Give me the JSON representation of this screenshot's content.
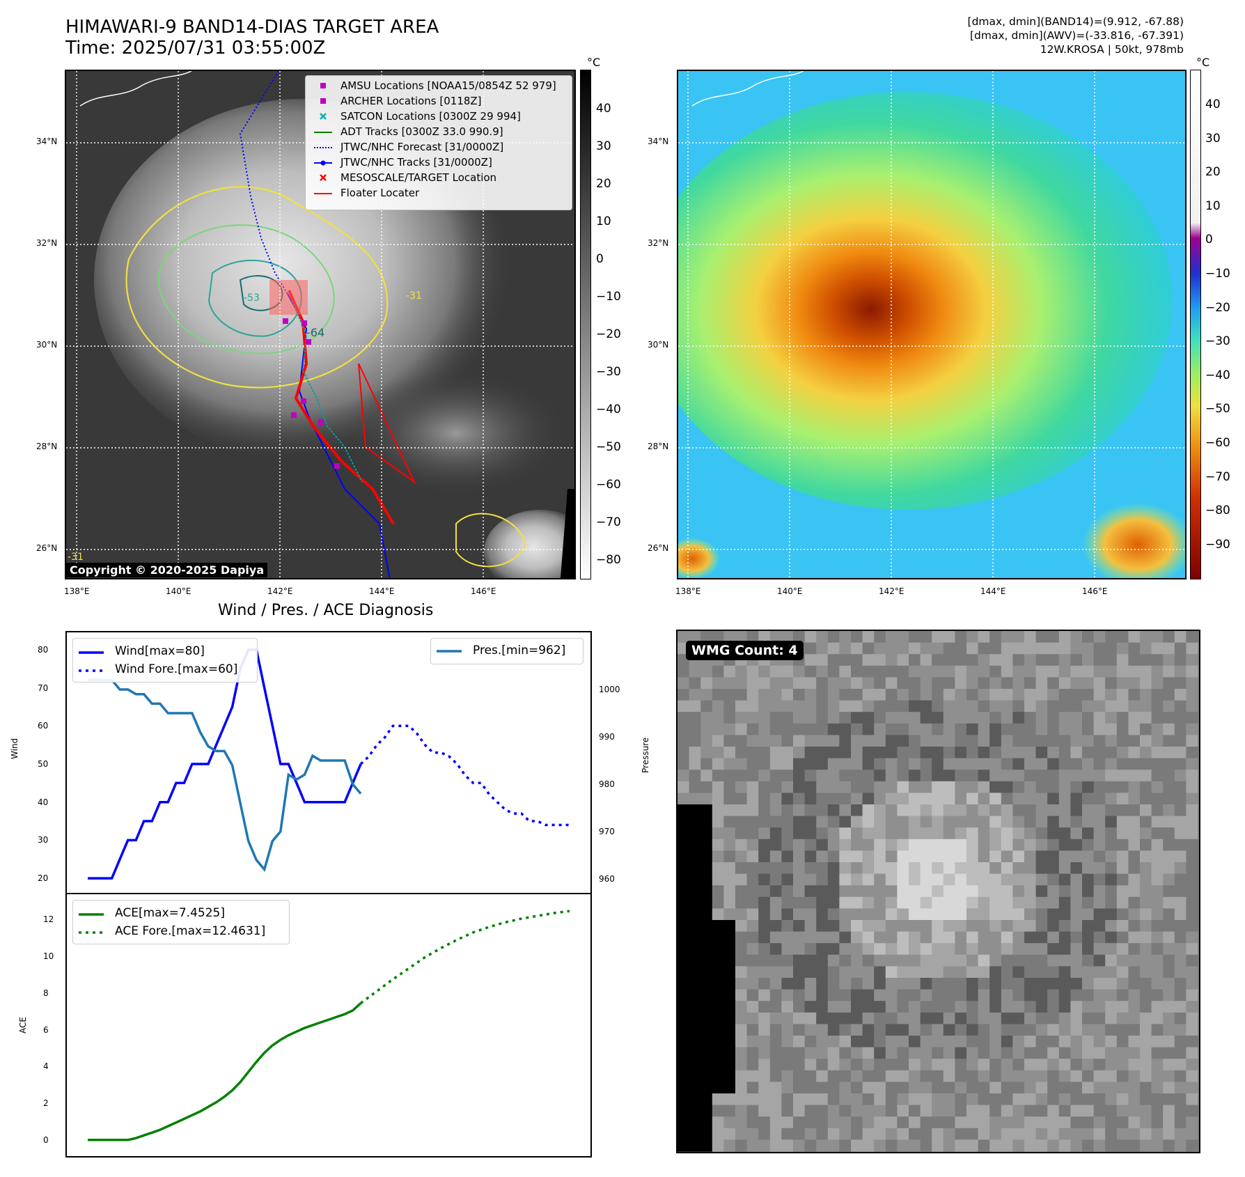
{
  "header": {
    "title_line1": "HIMAWARI-9 BAND14-DIAS TARGET AREA",
    "title_line2": "Time: 2025/07/31 03:55:00Z",
    "right_line1": "[dmax, dmin](BAND14)=(9.912, -67.88)",
    "right_line2": "[dmax, dmin](AWV)=(-33.816, -67.391)",
    "right_line3": "12W.KROSA | 50kt, 978mb"
  },
  "map": {
    "lat_labels": [
      "34°N",
      "32°N",
      "30°N",
      "28°N",
      "26°N"
    ],
    "lon_labels": [
      "138°E",
      "140°E",
      "142°E",
      "144°E",
      "146°E"
    ],
    "contour_labels": [
      "-64",
      "-53",
      "-31",
      "-31"
    ],
    "copyright": "Copyright © 2020-2025 Dapiya",
    "legend": [
      {
        "label": "AMSU Locations [NOAA15/0854Z 52 979]",
        "symbol": "square",
        "color": "#c000c0"
      },
      {
        "label": "ARCHER Locations [0118Z]",
        "symbol": "square",
        "color": "#c000c0"
      },
      {
        "label": "SATCON Locations [0300Z 29 994]",
        "symbol": "x",
        "color": "#00b0b0"
      },
      {
        "label": "ADT Tracks [0300Z 33.0 990.9]",
        "symbol": "line",
        "color": "#008000"
      },
      {
        "label": "JTWC/NHC Forecast [31/0000Z]",
        "symbol": "dotted",
        "color": "#0000ff"
      },
      {
        "label": "JTWC/NHC Tracks [31/0000Z]",
        "symbol": "line-dot",
        "color": "#0000ff"
      },
      {
        "label": "MESOSCALE/TARGET Location",
        "symbol": "x",
        "color": "#ff0000"
      },
      {
        "label": "Floater Locater",
        "symbol": "line",
        "color": "#ff0000"
      }
    ],
    "cbar_unit": "°C",
    "gray_cbar_ticks": [
      "40",
      "30",
      "20",
      "10",
      "0",
      "−10",
      "−20",
      "−30",
      "−40",
      "−50",
      "−60",
      "−70",
      "−80"
    ],
    "color_cbar_ticks": [
      "40",
      "30",
      "20",
      "10",
      "0",
      "−10",
      "−20",
      "−30",
      "−40",
      "−50",
      "−60",
      "−70",
      "−80",
      "−90"
    ]
  },
  "diagnosis": {
    "title": "Wind / Pres. / ACE Diagnosis",
    "wind_ylabel": "Wind",
    "pres_ylabel": "Pressure",
    "ace_ylabel": "ACE",
    "wind_ticks": [
      "80",
      "70",
      "60",
      "50",
      "40",
      "30",
      "20"
    ],
    "pres_ticks": [
      "1000",
      "990",
      "980",
      "970",
      "960"
    ],
    "ace_ticks": [
      "12",
      "10",
      "8",
      "6",
      "4",
      "2",
      "0"
    ],
    "legend_wind": "Wind[max=80]",
    "legend_wind_fore": "Wind Fore.[max=60]",
    "legend_pres": "Pres.[min=962]",
    "legend_ace": "ACE[max=7.4525]",
    "legend_ace_fore": "ACE Fore.[max=12.4631]"
  },
  "wmg": {
    "label": "WMG Count: 4"
  },
  "chart_data": [
    {
      "type": "line",
      "panel": "wind",
      "x": [
        0,
        1,
        2,
        3,
        4,
        5,
        6,
        7,
        8,
        9,
        10,
        11,
        12,
        13,
        14,
        15,
        16,
        17,
        18,
        19,
        20,
        21,
        22,
        23,
        24,
        25,
        26,
        27,
        28,
        29,
        30,
        31,
        32,
        33,
        34
      ],
      "series": [
        {
          "name": "Wind[max=80]",
          "x": [
            0,
            1,
            2,
            3,
            4,
            5,
            6,
            7,
            8,
            9,
            10,
            11,
            12,
            13,
            14,
            15,
            16,
            17,
            18,
            19,
            20,
            21,
            22,
            23,
            24,
            25,
            26,
            27,
            28,
            29,
            30,
            31,
            32,
            33,
            34
          ],
          "values": [
            20,
            20,
            20,
            20,
            25,
            30,
            30,
            35,
            35,
            40,
            40,
            45,
            45,
            50,
            50,
            50,
            55,
            60,
            65,
            75,
            80,
            80,
            70,
            60,
            50,
            50,
            45,
            40,
            40,
            40,
            40,
            40,
            40,
            45,
            50
          ],
          "color": "#0000ff"
        },
        {
          "name": "Wind Fore.[max=60]",
          "x": [
            34,
            35,
            36,
            37,
            38,
            39,
            40,
            41,
            42,
            43,
            44,
            45,
            46,
            47,
            48,
            49,
            50,
            51,
            52,
            53,
            54,
            55,
            56,
            57,
            58,
            59,
            60
          ],
          "values": [
            50,
            52,
            55,
            57,
            60,
            60,
            60,
            58,
            55,
            53,
            53,
            52,
            50,
            47,
            45,
            45,
            42,
            40,
            38,
            37,
            37,
            35,
            35,
            34,
            34,
            34,
            34
          ],
          "color": "#0000ff",
          "style": "dotted"
        }
      ],
      "ylim": [
        18,
        82
      ]
    },
    {
      "type": "line",
      "panel": "pressure",
      "series": [
        {
          "name": "Pres.[min=962]",
          "x": [
            0,
            1,
            2,
            3,
            4,
            5,
            6,
            7,
            8,
            9,
            10,
            11,
            12,
            13,
            14,
            15,
            16,
            17,
            18,
            19,
            20,
            21,
            22,
            23,
            24,
            25,
            26,
            27,
            28,
            29,
            30,
            31,
            32,
            33,
            34
          ],
          "values": [
            1002,
            1002,
            1002,
            1002,
            1000,
            1000,
            999,
            999,
            997,
            997,
            995,
            995,
            995,
            995,
            991,
            988,
            987,
            987,
            984,
            976,
            968,
            964,
            962,
            968,
            970,
            982,
            981,
            982,
            986,
            985,
            985,
            985,
            985,
            980,
            978
          ],
          "color": "#1f77b4"
        }
      ],
      "ylim": [
        960,
        1010
      ]
    },
    {
      "type": "line",
      "panel": "ace",
      "series": [
        {
          "name": "ACE[max=7.4525]",
          "x": [
            0,
            1,
            2,
            3,
            4,
            5,
            6,
            7,
            8,
            9,
            10,
            11,
            12,
            13,
            14,
            15,
            16,
            17,
            18,
            19,
            20,
            21,
            22,
            23,
            24,
            25,
            26,
            27,
            28,
            29,
            30,
            31,
            32,
            33,
            34
          ],
          "values": [
            0,
            0,
            0,
            0,
            0,
            0,
            0.1,
            0.25,
            0.4,
            0.55,
            0.75,
            0.95,
            1.15,
            1.35,
            1.55,
            1.8,
            2.05,
            2.35,
            2.7,
            3.15,
            3.7,
            4.25,
            4.75,
            5.15,
            5.45,
            5.7,
            5.9,
            6.1,
            6.25,
            6.4,
            6.55,
            6.7,
            6.85,
            7.05,
            7.45
          ],
          "color": "#008000"
        },
        {
          "name": "ACE Fore.[max=12.4631]",
          "x": [
            34,
            36,
            38,
            40,
            42,
            44,
            46,
            48,
            50,
            52,
            54,
            56,
            58,
            60
          ],
          "values": [
            7.45,
            8.1,
            8.75,
            9.35,
            9.95,
            10.45,
            10.9,
            11.3,
            11.6,
            11.85,
            12.05,
            12.2,
            12.35,
            12.46
          ],
          "color": "#008000",
          "style": "dotted"
        }
      ],
      "ylim": [
        -0.5,
        13
      ]
    }
  ]
}
